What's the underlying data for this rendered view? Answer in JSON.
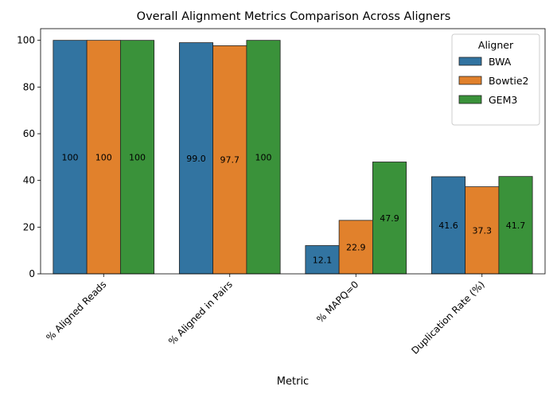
{
  "chart_data": {
    "type": "bar",
    "title": "Overall Alignment Metrics Comparison Across Aligners",
    "xlabel": "Metric",
    "ylabel": "",
    "ylim": [
      0,
      105
    ],
    "yticks": [
      0,
      20,
      40,
      60,
      80,
      100
    ],
    "categories": [
      "% Aligned Reads",
      "% Aligned in Pairs",
      "% MAPQ=0",
      "Duplication Rate (%)"
    ],
    "series": [
      {
        "name": "BWA",
        "color": "#3274a1",
        "values": [
          100,
          99.0,
          12.1,
          41.6
        ],
        "labels": [
          "100",
          "99.0",
          "12.1",
          "41.6"
        ]
      },
      {
        "name": "Bowtie2",
        "color": "#e1812c",
        "values": [
          100,
          97.7,
          22.9,
          37.3
        ],
        "labels": [
          "100",
          "97.7",
          "22.9",
          "37.3"
        ]
      },
      {
        "name": "GEM3",
        "color": "#3a923a",
        "values": [
          100,
          100,
          47.9,
          41.7
        ],
        "labels": [
          "100",
          "100",
          "47.9",
          "41.7"
        ]
      }
    ],
    "legend": {
      "title": "Aligner",
      "position": "top-right"
    },
    "grid": false
  }
}
